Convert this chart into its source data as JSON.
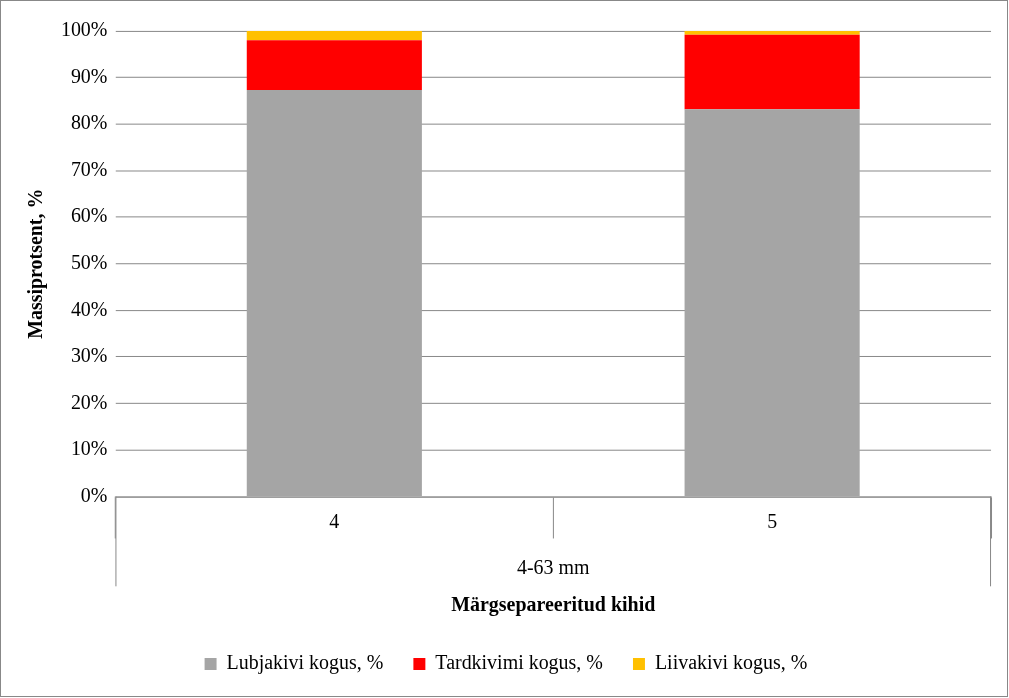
{
  "chart_data": {
    "type": "bar",
    "stacked": true,
    "categories": [
      "4",
      "5"
    ],
    "series": [
      {
        "name": "Lubjakivi kogus, %",
        "color": "#a5a5a5",
        "values": [
          87.3,
          83.2
        ]
      },
      {
        "name": "Tardkivimi kogus, %",
        "color": "#ff0000",
        "values": [
          10.7,
          16.0
        ]
      },
      {
        "name": "Liivakivi kogus, %",
        "color": "#ffc000",
        "values": [
          2.0,
          0.8
        ]
      }
    ],
    "ylabel": "Massiprotsent, %",
    "xlabel": "Märgsepareeritud kihid",
    "annotations": [
      "4-63 mm"
    ],
    "ylim": [
      0,
      100
    ],
    "yticks": [
      {
        "value": 0,
        "label": "0%"
      },
      {
        "value": 10,
        "label": "10%"
      },
      {
        "value": 20,
        "label": "20%"
      },
      {
        "value": 30,
        "label": "30%"
      },
      {
        "value": 40,
        "label": "40%"
      },
      {
        "value": 50,
        "label": "50%"
      },
      {
        "value": 60,
        "label": "60%"
      },
      {
        "value": 70,
        "label": "70%"
      },
      {
        "value": 80,
        "label": "80%"
      },
      {
        "value": 90,
        "label": "90%"
      },
      {
        "value": 100,
        "label": "100%"
      }
    ],
    "grid": "y",
    "legend": "bottom"
  }
}
